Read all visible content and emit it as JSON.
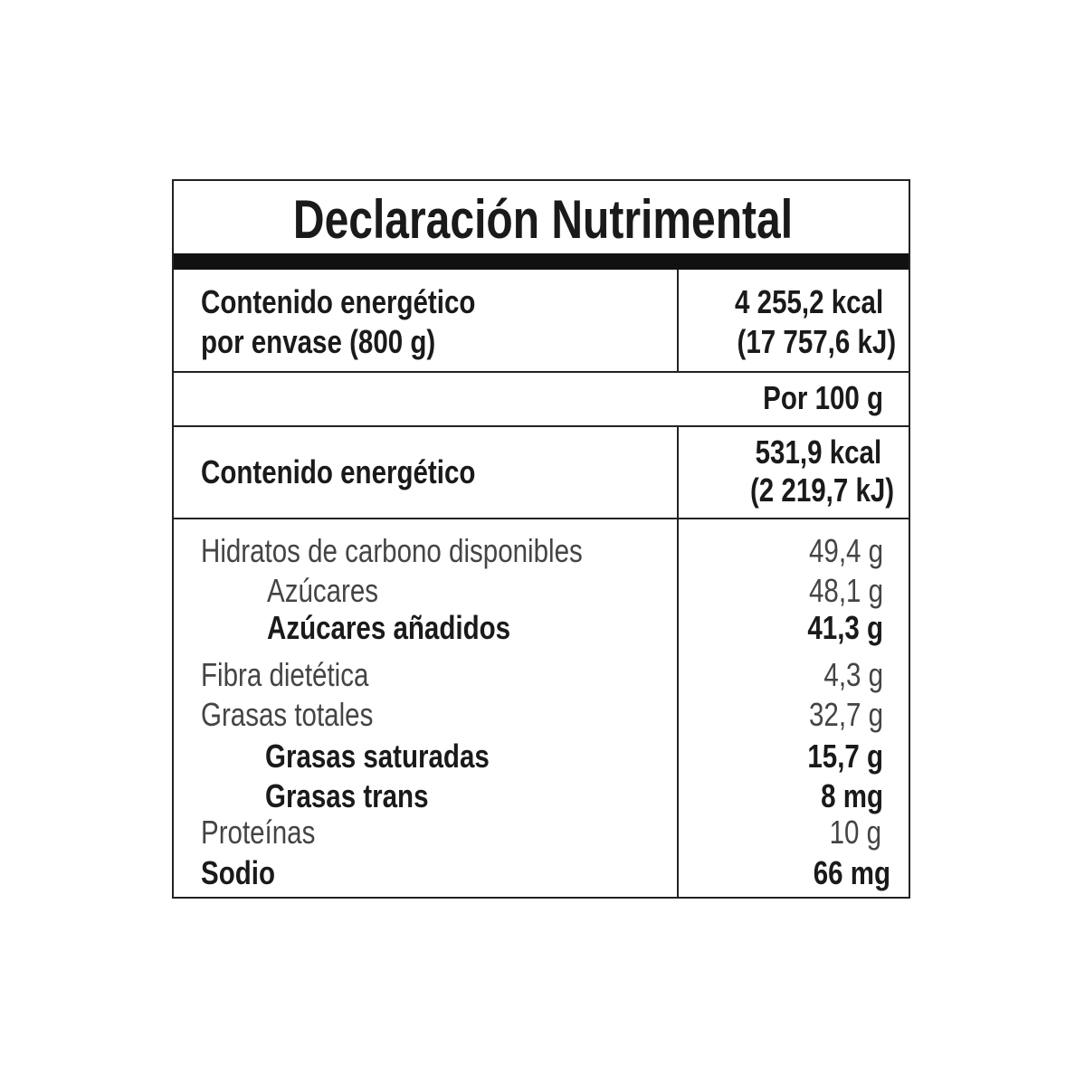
{
  "title": "Declaración Nutrimental",
  "per_package": {
    "label_line1": "Contenido energético",
    "label_line2": "por envase (800 g)",
    "value_kcal": "4 255,2 kcal",
    "value_kj": "(17 757,6 kJ)"
  },
  "per_100_header": "Por 100 g",
  "energy": {
    "label": "Contenido energético",
    "value_kcal": "531,9 kcal",
    "value_kj": "(2 219,7 kJ)"
  },
  "nutrients": [
    {
      "label": "Hidratos de carbono disponibles",
      "value": "49,4 g"
    },
    {
      "label": "Azúcares",
      "value": "48,1 g"
    },
    {
      "label": "Azúcares añadidos",
      "value": "41,3 g"
    },
    {
      "label": "Fibra dietética",
      "value": "4,3 g"
    },
    {
      "label": "Grasas totales",
      "value": "32,7 g"
    },
    {
      "label": "Grasas saturadas",
      "value": "15,7 g"
    },
    {
      "label": "Grasas trans",
      "value": "8 mg"
    },
    {
      "label": "Proteínas",
      "value": "10 g"
    },
    {
      "label": "Sodio",
      "value": "66 mg"
    }
  ]
}
